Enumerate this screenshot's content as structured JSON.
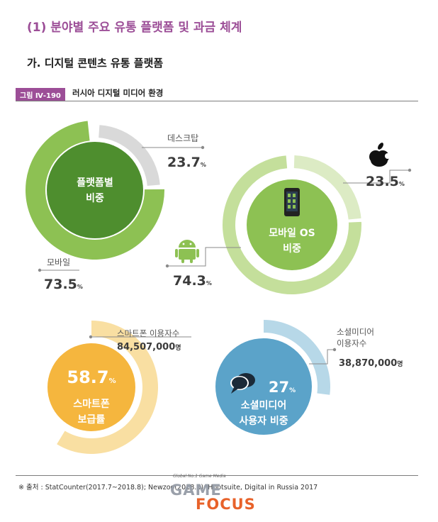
{
  "header": {
    "section_title": "(1) 분야별 주요 유통 플랫폼 및 과금 체계",
    "sub_title": "가. 디지털 콘텐츠 유통 플랫폼",
    "figure_tag": "그림 Ⅳ-190",
    "figure_title": "러시아 디지털 미디어 환경"
  },
  "footer": {
    "source": "※ 출처 : StatCounter(2017.7~2018.8); Newzoo(2018.8); Hootsuite, Digital in Russia 2017",
    "logo_tagline": "Global No.1 Game Media",
    "logo_game": "GAME",
    "logo_focus": "FOCUS"
  },
  "colors": {
    "dark_green": "#4e8e2e",
    "mid_green": "#8dc153",
    "light_green": "#c4df9b",
    "pale_green": "#dcebc4",
    "gray": "#d9d9d9",
    "orange": "#f5b63e",
    "pale_orange": "#f9dfa2",
    "blue": "#5ba3c9",
    "pale_blue": "#b7d8e8",
    "leader": "#8a8a8a",
    "pct_text": "#3b3b3b"
  },
  "chart_data": [
    {
      "type": "pie",
      "title": "플랫폼별 비중",
      "title_lines": [
        "플랫폼별",
        "비중"
      ],
      "slices": [
        {
          "label": "데스크탑",
          "value": 23.7,
          "value_text": "23.7",
          "unit": "%"
        },
        {
          "label": "모바일",
          "value": 73.5,
          "value_text": "73.5",
          "unit": "%"
        }
      ]
    },
    {
      "type": "pie",
      "title": "모바일 OS 비중",
      "title_lines": [
        "모바일 OS",
        "비중"
      ],
      "slices": [
        {
          "label": "",
          "icon": "apple-icon",
          "value": 23.5,
          "value_text": "23.5",
          "unit": "%"
        },
        {
          "label": "",
          "icon": "android-icon",
          "value": 74.3,
          "value_text": "74.3",
          "unit": "%"
        }
      ]
    },
    {
      "type": "pie",
      "title": "스마트폰 보급률",
      "title_lines": [
        "스마트폰",
        "보급률"
      ],
      "value": 58.7,
      "value_text": "58.7",
      "unit": "%",
      "annotation_label": "스마트폰 이용자수",
      "annotation_value": "84,507,000",
      "annotation_unit": "명"
    },
    {
      "type": "pie",
      "title": "소셜미디어 사용자 비중",
      "title_lines": [
        "소셜미디어",
        "사용자 비중"
      ],
      "value": 27,
      "value_text": "27",
      "unit": "%",
      "icon": "chat-bubbles-icon",
      "annotation_label_lines": [
        "소셜미디어",
        "이용자수"
      ],
      "annotation_value": "38,870,000",
      "annotation_unit": "명"
    }
  ]
}
